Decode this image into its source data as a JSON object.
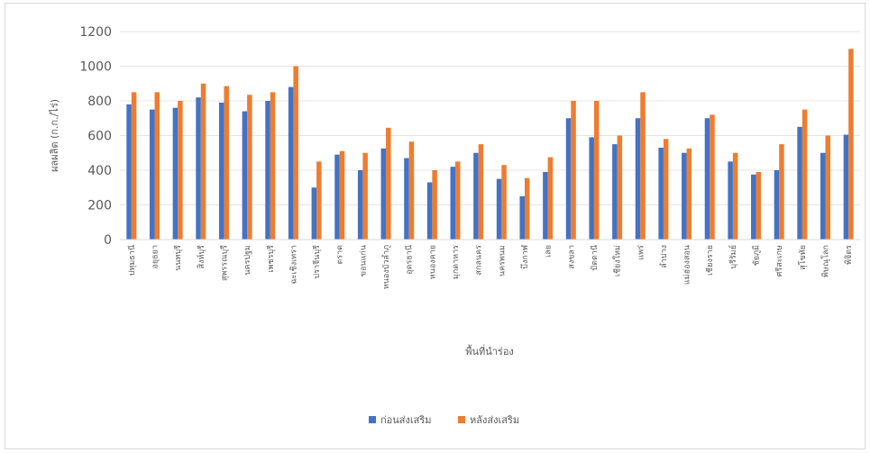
{
  "chart_data": {
    "type": "bar",
    "title": "",
    "xlabel": "พื้นที่นำร่อง",
    "ylabel": "ผลผลิต (ก.ก./ไร่)",
    "ylim": [
      0,
      1200
    ],
    "yticks": [
      0,
      200,
      400,
      600,
      800,
      1000,
      1200
    ],
    "grid": true,
    "legend_position": "bottom",
    "categories": [
      "ปทุมธานี",
      "อยุธยา",
      "นนทบุรี",
      "สิงห์บุรี",
      "สุพรรณบุรี",
      "นครปฐม",
      "เพชรบุรี",
      "ฉะเชิงเทรา",
      "ปราจีนบุรี",
      "ตราด",
      "ขอนแก่น",
      "หนองบัวลำภู",
      "อุดรธานี",
      "หนองคาย",
      "มุกดาหาร",
      "สกลนคร",
      "นครพนม",
      "บึงกาฬ",
      "เลย",
      "สงขลา",
      "ปัตตานี",
      "เชียงใหม่",
      "แพร่",
      "ลำปาง",
      "แม่ฮ่องสอน",
      "เชียงราย",
      "บุรีรัมย์",
      "ชัยภูมิ",
      "ศรีสะเกษ",
      "สุโขทัย",
      "พิษณุโลก",
      "พิจิตร"
    ],
    "series": [
      {
        "name": "ก่อนส่งเสริม",
        "color": "#4472C4",
        "values": [
          780,
          750,
          760,
          820,
          790,
          740,
          800,
          880,
          300,
          490,
          400,
          525,
          470,
          330,
          420,
          500,
          350,
          250,
          390,
          700,
          590,
          550,
          700,
          530,
          500,
          700,
          450,
          375,
          400,
          650,
          500,
          605
        ]
      },
      {
        "name": "หลังส่งเสริม",
        "color": "#ED7D31",
        "values": [
          850,
          850,
          800,
          900,
          885,
          835,
          850,
          1000,
          450,
          510,
          500,
          645,
          565,
          400,
          450,
          550,
          430,
          355,
          475,
          800,
          800,
          600,
          850,
          580,
          525,
          720,
          500,
          390,
          550,
          750,
          600,
          1100
        ]
      }
    ]
  }
}
